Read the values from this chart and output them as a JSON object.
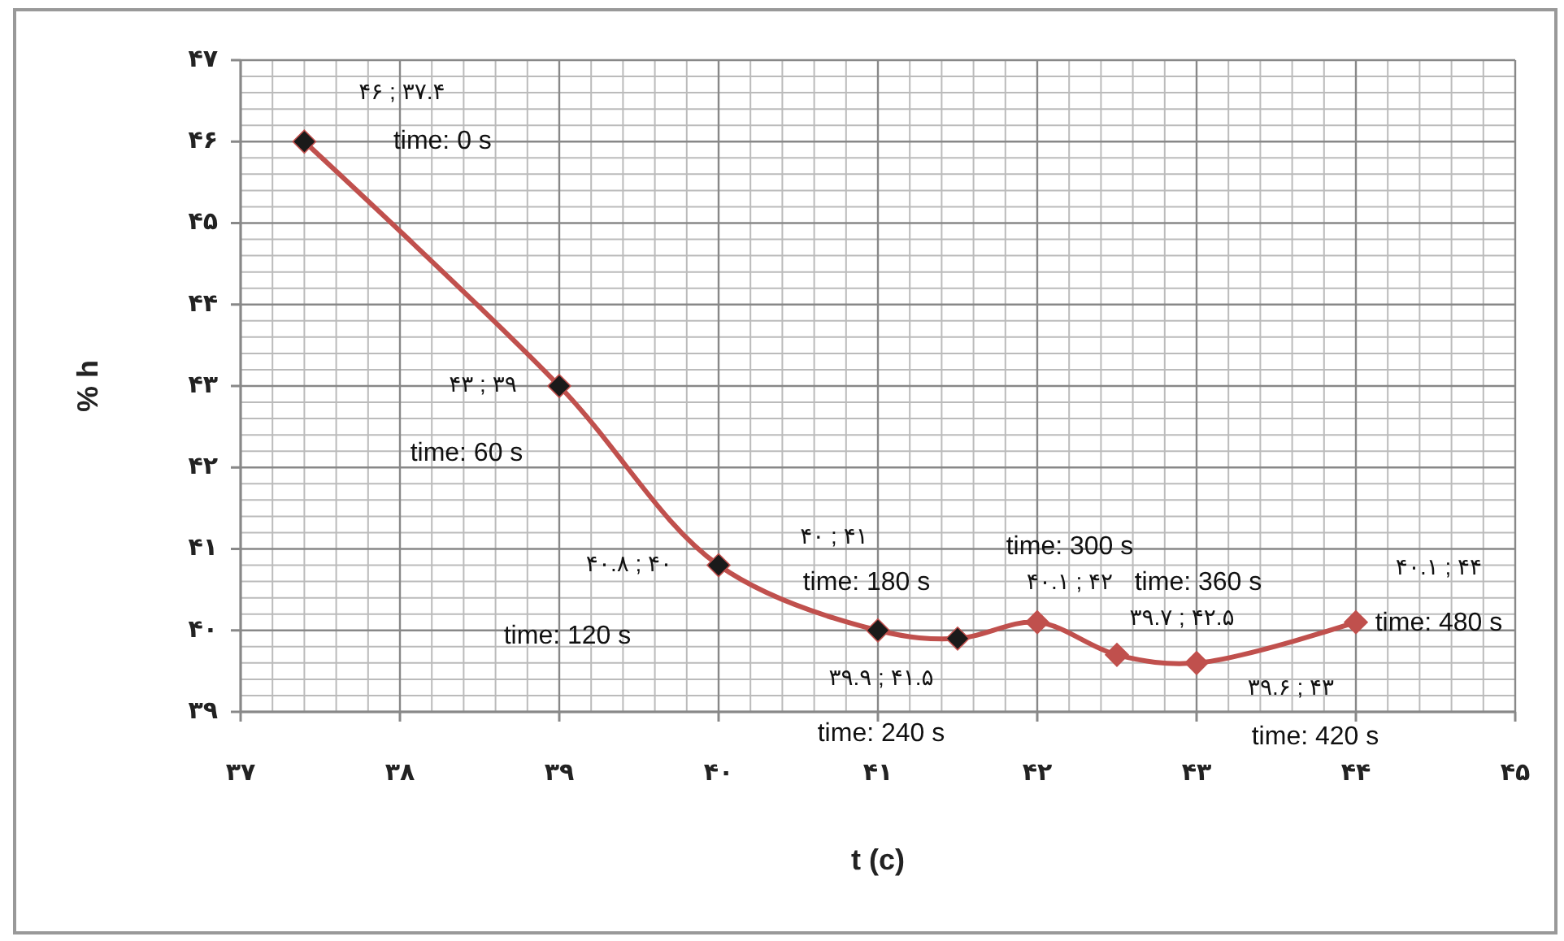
{
  "chart_data": {
    "type": "line",
    "xlabel": "t (c)",
    "ylabel": "% h",
    "x": [
      37.4,
      39,
      40,
      41,
      41.5,
      42,
      42.5,
      43,
      44
    ],
    "series": [
      {
        "color": "#c0504d",
        "colors": [
          "#1a1a1a",
          "#1a1a1a",
          "#1a1a1a",
          "#1a1a1a",
          "#1a1a1a",
          "#c0504d",
          "#c0504d",
          "#c0504d",
          "#c0504d"
        ],
        "values": [
          46,
          43,
          40.8,
          40,
          39.9,
          40.1,
          39.7,
          39.6,
          40.1
        ],
        "value_labels": [
          "۴۶ ; ۳۷.۴",
          "۴۳ ; ۳۹",
          "۴۰.۸ ; ۴۰",
          "۴۰ ; ۴۱",
          "۳۹.۹ ; ۴۱.۵",
          "۴۰.۱ ; ۴۲",
          "۳۹.۷ ; ۴۲.۵",
          "۳۹.۶ ; ۴۳",
          "۴۰.۱ ; ۴۴"
        ]
      }
    ],
    "annotations": [
      "time: 0 s",
      "time: 60 s",
      "time: 120 s",
      "time: 180 s",
      "time: 240 s",
      "time: 300 s",
      "time: 360 s",
      "time: 420 s",
      "time: 480 s"
    ],
    "xlim": [
      37,
      45
    ],
    "ylim": [
      39,
      47
    ],
    "xticks": [
      {
        "value": 37,
        "label": "۳۷"
      },
      {
        "value": 38,
        "label": "۳۸"
      },
      {
        "value": 39,
        "label": "۳۹"
      },
      {
        "value": 40,
        "label": "۴۰"
      },
      {
        "value": 41,
        "label": "۴۱"
      },
      {
        "value": 42,
        "label": "۴۲"
      },
      {
        "value": 43,
        "label": "۴۳"
      },
      {
        "value": 44,
        "label": "۴۴"
      },
      {
        "value": 45,
        "label": "۴۵"
      }
    ],
    "yticks": [
      {
        "value": 39,
        "label": "۳۹"
      },
      {
        "value": 40,
        "label": "۴۰"
      },
      {
        "value": 41,
        "label": "۴۱"
      },
      {
        "value": 42,
        "label": "۴۲"
      },
      {
        "value": 43,
        "label": "۴۳"
      },
      {
        "value": 44,
        "label": "۴۴"
      },
      {
        "value": 45,
        "label": "۴۵"
      },
      {
        "value": 46,
        "label": "۴۶"
      },
      {
        "value": 47,
        "label": "۴۷"
      }
    ],
    "grid": true,
    "marker": "diamond",
    "line_style": "solid"
  }
}
